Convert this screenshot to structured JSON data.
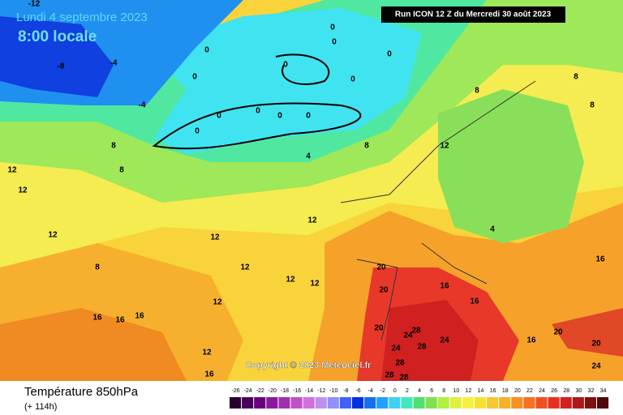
{
  "map": {
    "date": "Lundi 4 septembre 2023",
    "time": "8:00 locale",
    "run": "Run ICON 12 Z du Mercredi 30 août 2023",
    "copyright": "Copyright © 2023 Meteociel.fr",
    "field": "Température 850hPa",
    "lead": "(+ 114h)",
    "contour_labels": [
      -12,
      -4,
      -8,
      -4,
      0,
      0,
      0,
      0,
      0,
      0,
      0,
      0,
      0,
      0,
      0,
      0,
      4,
      4,
      8,
      8,
      8,
      8,
      8,
      8,
      8,
      12,
      12,
      12,
      12,
      12,
      12,
      12,
      12,
      12,
      12,
      12,
      16,
      16,
      16,
      16,
      16,
      16,
      16,
      16,
      20,
      20,
      20,
      20,
      20,
      24,
      24,
      24,
      24,
      28,
      28,
      28,
      28,
      28
    ],
    "scale": {
      "values": [
        -26,
        -24,
        -22,
        -20,
        -18,
        -16,
        -14,
        -12,
        -10,
        -8,
        -6,
        -4,
        -2,
        0,
        2,
        4,
        6,
        8,
        10,
        12,
        14,
        16,
        18,
        20,
        22,
        24,
        26,
        28,
        30,
        32,
        34
      ],
      "colors": [
        "#2a0030",
        "#4b0060",
        "#6a0080",
        "#8a1a9a",
        "#a030b0",
        "#c050c8",
        "#d070e0",
        "#c090f0",
        "#9090ff",
        "#4060ff",
        "#0030e0",
        "#1070f0",
        "#20a0ff",
        "#40d0f0",
        "#40e8c0",
        "#50e070",
        "#80e050",
        "#b0f040",
        "#e0f040",
        "#f8f040",
        "#f8e030",
        "#f8c830",
        "#f8b028",
        "#f89020",
        "#f87020",
        "#f05020",
        "#e83020",
        "#d02020",
        "#b01818",
        "#801010",
        "#500808"
      ]
    }
  }
}
